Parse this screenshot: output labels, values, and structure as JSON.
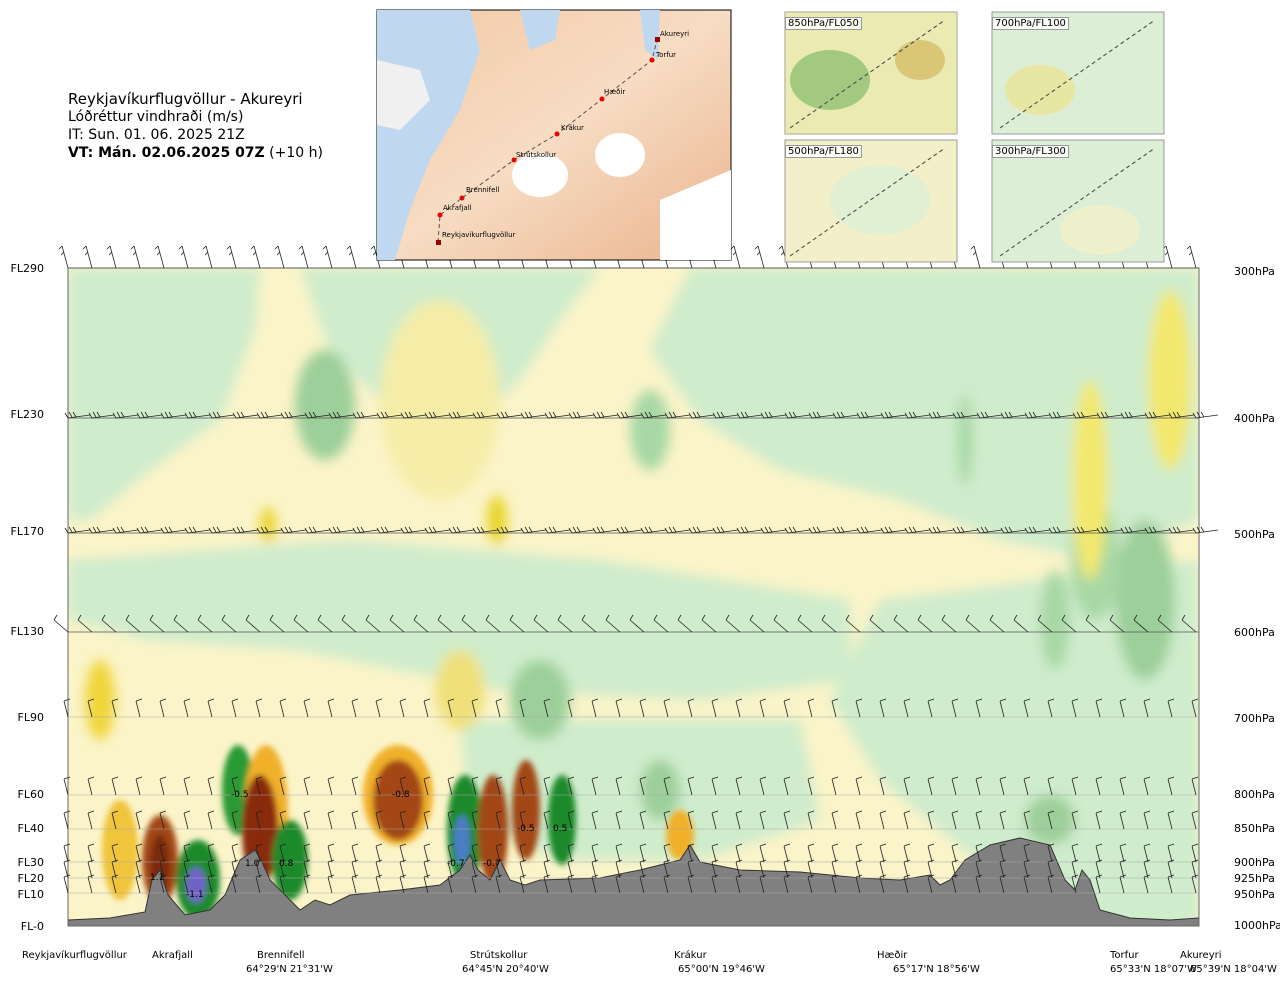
{
  "header": {
    "route": "Reykjavíkurflugvöllur - Akureyri",
    "variable": "Lóðréttur vindhraði (m/s)",
    "it": "IT: Sun. 01. 06. 2025 21Z",
    "vt_bold": "VT: Mán. 02.06.2025 07Z",
    "vt_offset": "(+10 h)"
  },
  "map": {
    "stations": [
      "Akureyri",
      "Torfur",
      "Hæðir",
      "Krákur",
      "Strútskollur",
      "Brennifell",
      "Akrafjall",
      "Reykjavíkurflugvöllur"
    ]
  },
  "insets": [
    "850hPa/FL050",
    "700hPa/FL100",
    "500hPa/FL180",
    "300hPa/FL300"
  ],
  "chart_data": {
    "type": "heatmap",
    "title": "Lóðréttur vindhraði (m/s)",
    "y_levels_left": [
      "FL290",
      "FL230",
      "FL170",
      "FL130",
      "FL90",
      "FL60",
      "FL40",
      "FL30",
      "FL20",
      "FL10",
      "FL-0"
    ],
    "y_levels_right": [
      "300hPa",
      "400hPa",
      "500hPa",
      "600hPa",
      "700hPa",
      "800hPa",
      "850hPa",
      "900hPa",
      "925hPa",
      "950hPa",
      "1000hPa"
    ],
    "x_waypoints": [
      {
        "name": "Reykjavíkurflugvöllur",
        "coord": ""
      },
      {
        "name": "Akrafjall",
        "coord": ""
      },
      {
        "name": "Brennifell",
        "coord": "64°29'N 21°31'W"
      },
      {
        "name": "Strútskollur",
        "coord": "64°45'N 20°40'W"
      },
      {
        "name": "Krákur",
        "coord": "65°00'N 19°46'W"
      },
      {
        "name": "Hæðir",
        "coord": "65°17'N 18°56'W"
      },
      {
        "name": "Torfur",
        "coord": "65°33'N 18°07'W"
      },
      {
        "name": "Akureyri",
        "coord": "65°39'N 18°04'W"
      }
    ],
    "annotations": [
      "1.1",
      "-1.1",
      "-0.5",
      "1.0",
      "0.8",
      "-0.8",
      "-0.7",
      "-0.7",
      "-0.5",
      "0.5"
    ]
  }
}
